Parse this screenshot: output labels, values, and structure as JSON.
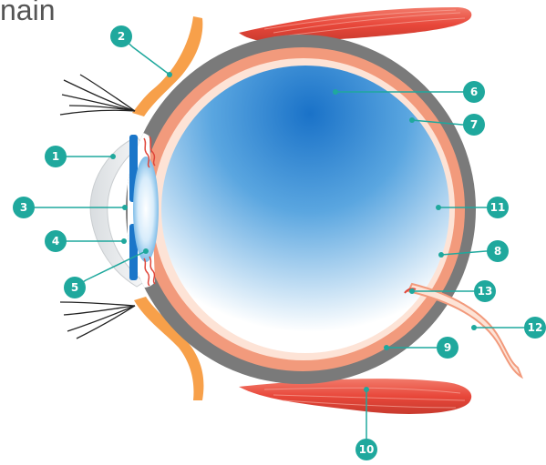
{
  "title": "nain",
  "colors": {
    "badge": "#1fa89d",
    "sclera": "#7a7a7a",
    "choroid": "#f29a7c",
    "retina": "#fde3d6",
    "vitreous_dark": "#1e7fd0",
    "vitreous_light": "#ffffff",
    "eyelid": "#f7a04a",
    "iris": "#1a76c9",
    "muscle": "#e84a3c"
  },
  "callouts": [
    {
      "number": "1"
    },
    {
      "number": "2"
    },
    {
      "number": "3"
    },
    {
      "number": "4"
    },
    {
      "number": "5"
    },
    {
      "number": "6"
    },
    {
      "number": "7"
    },
    {
      "number": "8"
    },
    {
      "number": "9"
    },
    {
      "number": "10"
    },
    {
      "number": "11"
    },
    {
      "number": "12"
    },
    {
      "number": "13"
    }
  ]
}
